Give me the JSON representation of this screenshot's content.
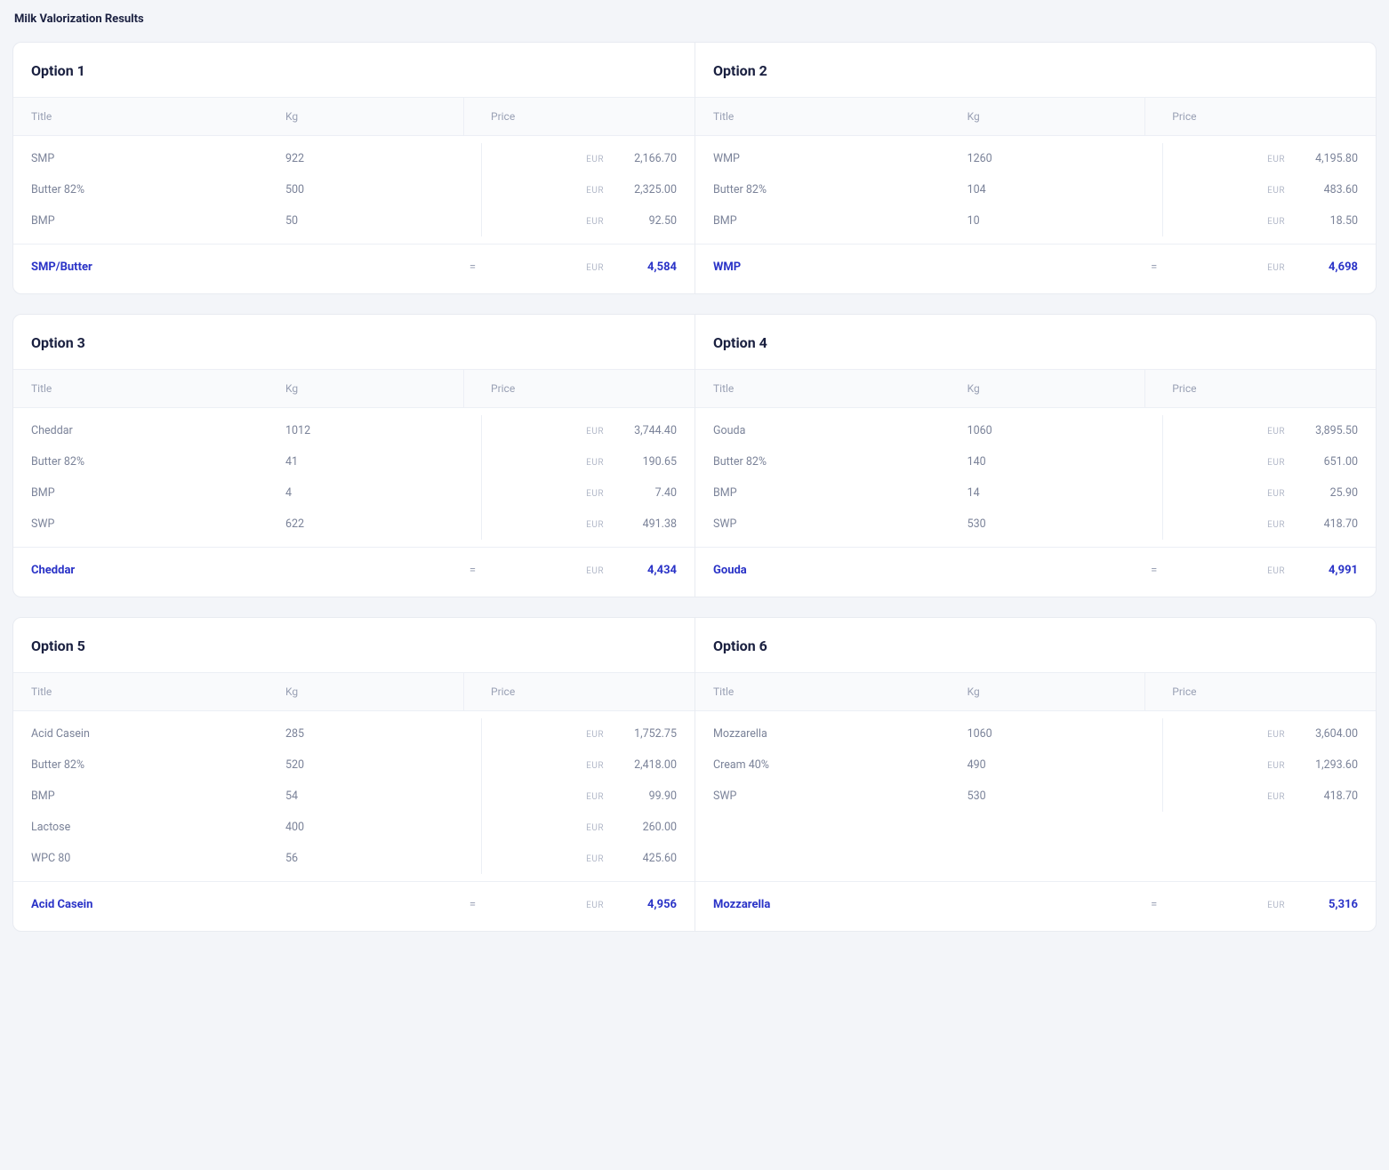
{
  "page_title": "Milk Valorization Results",
  "currency_label": "EUR",
  "columns": {
    "title": "Title",
    "kg": "Kg",
    "price": "Price"
  },
  "colors": {
    "page_bg": "#f3f5f9",
    "card_bg": "#ffffff",
    "border": "#e8ebf1",
    "header_bg": "#f9fafc",
    "text_primary": "#1a2040",
    "text_muted": "#7b8399",
    "text_light": "#99a0b4",
    "accent": "#2a33c7"
  },
  "pairs": [
    [
      {
        "title": "Option 1",
        "rows": [
          {
            "title": "SMP",
            "kg": "922",
            "price": "2,166.70"
          },
          {
            "title": "Butter 82%",
            "kg": "500",
            "price": "2,325.00"
          },
          {
            "title": "BMP",
            "kg": "50",
            "price": "92.50"
          }
        ],
        "total": {
          "label": "SMP/Butter",
          "price": "4,584"
        }
      },
      {
        "title": "Option 2",
        "rows": [
          {
            "title": "WMP",
            "kg": "1260",
            "price": "4,195.80"
          },
          {
            "title": "Butter 82%",
            "kg": "104",
            "price": "483.60"
          },
          {
            "title": "BMP",
            "kg": "10",
            "price": "18.50"
          }
        ],
        "total": {
          "label": "WMP",
          "price": "4,698"
        }
      }
    ],
    [
      {
        "title": "Option 3",
        "rows": [
          {
            "title": "Cheddar",
            "kg": "1012",
            "price": "3,744.40"
          },
          {
            "title": "Butter 82%",
            "kg": "41",
            "price": "190.65"
          },
          {
            "title": "BMP",
            "kg": "4",
            "price": "7.40"
          },
          {
            "title": "SWP",
            "kg": "622",
            "price": "491.38"
          }
        ],
        "total": {
          "label": "Cheddar",
          "price": "4,434"
        }
      },
      {
        "title": "Option 4",
        "rows": [
          {
            "title": "Gouda",
            "kg": "1060",
            "price": "3,895.50"
          },
          {
            "title": "Butter 82%",
            "kg": "140",
            "price": "651.00"
          },
          {
            "title": "BMP",
            "kg": "14",
            "price": "25.90"
          },
          {
            "title": "SWP",
            "kg": "530",
            "price": "418.70"
          }
        ],
        "total": {
          "label": "Gouda",
          "price": "4,991"
        }
      }
    ],
    [
      {
        "title": "Option 5",
        "rows": [
          {
            "title": "Acid Casein",
            "kg": "285",
            "price": "1,752.75"
          },
          {
            "title": "Butter 82%",
            "kg": "520",
            "price": "2,418.00"
          },
          {
            "title": "BMP",
            "kg": "54",
            "price": "99.90"
          },
          {
            "title": "Lactose",
            "kg": "400",
            "price": "260.00"
          },
          {
            "title": "WPC 80",
            "kg": "56",
            "price": "425.60"
          }
        ],
        "total": {
          "label": "Acid Casein",
          "price": "4,956"
        }
      },
      {
        "title": "Option 6",
        "rows": [
          {
            "title": "Mozzarella",
            "kg": "1060",
            "price": "3,604.00"
          },
          {
            "title": "Cream 40%",
            "kg": "490",
            "price": "1,293.60"
          },
          {
            "title": "SWP",
            "kg": "530",
            "price": "418.70"
          }
        ],
        "total": {
          "label": "Mozzarella",
          "price": "5,316"
        }
      }
    ]
  ]
}
